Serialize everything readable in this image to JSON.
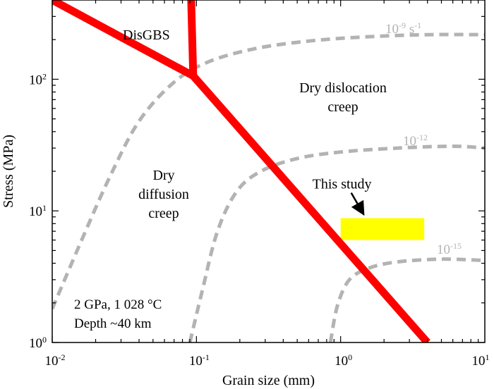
{
  "chart_data": {
    "type": "line",
    "xlabel": "Grain size (mm)",
    "ylabel": "Stress (MPa)",
    "xscale": "log",
    "yscale": "log",
    "xlim": [
      0.01,
      10
    ],
    "ylim": [
      1,
      400
    ],
    "x_ticks": [
      {
        "value": 0.01,
        "base": "10",
        "exp": "-2"
      },
      {
        "value": 0.1,
        "base": "10",
        "exp": "-1"
      },
      {
        "value": 1,
        "base": "10",
        "exp": "0"
      },
      {
        "value": 10,
        "base": "10",
        "exp": "1"
      }
    ],
    "y_ticks": [
      {
        "value": 1,
        "base": "10",
        "exp": "0"
      },
      {
        "value": 10,
        "base": "10",
        "exp": "1"
      },
      {
        "value": 100,
        "base": "10",
        "exp": "2"
      }
    ],
    "boundaries": [
      {
        "role": "DisGBS / diffusion boundary",
        "points": [
          [
            0.01,
            400
          ],
          [
            0.095,
            106
          ]
        ]
      },
      {
        "role": "DisGBS / dislocation boundary",
        "points": [
          [
            0.092,
            400
          ],
          [
            0.095,
            106
          ]
        ]
      },
      {
        "role": "diffusion / dislocation boundary",
        "points": [
          [
            0.095,
            106
          ],
          [
            4.0,
            1.0
          ]
        ]
      }
    ],
    "strain_rate_contours": [
      {
        "label_base": "10",
        "label_exp": "-9",
        "label_unit": " s",
        "label_unit_exp": "-1",
        "points": [
          [
            0.01,
            1.8
          ],
          [
            0.016,
            6
          ],
          [
            0.025,
            18
          ],
          [
            0.04,
            48
          ],
          [
            0.07,
            95
          ],
          [
            0.12,
            135
          ],
          [
            0.25,
            170
          ],
          [
            0.6,
            195
          ],
          [
            1.5,
            210
          ],
          [
            4,
            218
          ],
          [
            10,
            218
          ]
        ]
      },
      {
        "label_base": "10",
        "label_exp": "-12",
        "label_unit": "",
        "label_unit_exp": "",
        "points": [
          [
            0.09,
            1.0
          ],
          [
            0.11,
            2.5
          ],
          [
            0.14,
            7
          ],
          [
            0.19,
            14
          ],
          [
            0.28,
            20
          ],
          [
            0.5,
            25
          ],
          [
            1,
            28
          ],
          [
            2.5,
            30
          ],
          [
            6,
            31
          ],
          [
            10,
            30
          ]
        ]
      },
      {
        "label_base": "10",
        "label_exp": "-15",
        "label_unit": "",
        "label_unit_exp": "",
        "points": [
          [
            0.85,
            1.0
          ],
          [
            0.95,
            1.9
          ],
          [
            1.15,
            3.0
          ],
          [
            1.6,
            3.7
          ],
          [
            2.5,
            4.1
          ],
          [
            5,
            4.3
          ],
          [
            10,
            4.2
          ]
        ]
      }
    ],
    "regions": [
      {
        "lines": [
          "DisGBS"
        ]
      },
      {
        "lines": [
          "Dry dislocation",
          "creep"
        ]
      },
      {
        "lines": [
          "Dry",
          "diffusion",
          "creep"
        ]
      }
    ],
    "this_study": {
      "label": "This study",
      "x_range": [
        1.0,
        3.8
      ],
      "y_range": [
        6,
        8.8
      ],
      "color": "#ffff00"
    },
    "conditions": [
      "2 GPa, 1 028 °C",
      "Depth ~40 km"
    ],
    "colors": {
      "boundary": "#ff0000",
      "contour": "#b3b3b3",
      "axis": "#000000",
      "text": "#000000"
    }
  }
}
